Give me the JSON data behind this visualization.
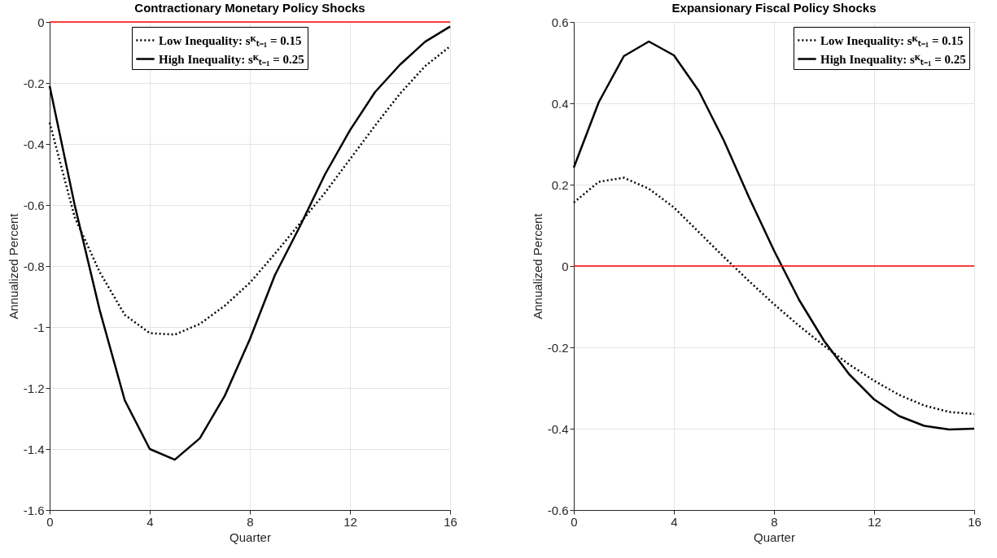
{
  "chart_data": [
    {
      "type": "line",
      "title": "Contractionary Monetary Policy Shocks",
      "xlabel": "Quarter",
      "ylabel": "Annualized Percent",
      "x": [
        0,
        1,
        2,
        3,
        4,
        5,
        6,
        7,
        8,
        9,
        10,
        11,
        12,
        13,
        14,
        15,
        16
      ],
      "series": [
        {
          "name": "Low Inequality: sᴷₜ₋₁ = 0.15",
          "color": "#000000",
          "line_style": "dotted",
          "values": [
            -0.33,
            -0.64,
            -0.82,
            -0.96,
            -1.02,
            -1.025,
            -0.99,
            -0.93,
            -0.855,
            -0.76,
            -0.66,
            -0.56,
            -0.45,
            -0.34,
            -0.235,
            -0.145,
            -0.08
          ]
        },
        {
          "name": "High Inequality: sᴷₜ₋₁ = 0.25",
          "color": "#000000",
          "line_style": "solid",
          "values": [
            -0.21,
            -0.6,
            -0.945,
            -1.24,
            -1.4,
            -1.435,
            -1.365,
            -1.225,
            -1.04,
            -0.83,
            -0.67,
            -0.5,
            -0.355,
            -0.23,
            -0.14,
            -0.065,
            -0.015
          ]
        }
      ],
      "xlim": [
        0,
        16
      ],
      "xticks": [
        0,
        4,
        8,
        12,
        16
      ],
      "ylim": [
        -1.6,
        0
      ],
      "yticks": [
        -1.6,
        -1.4,
        -1.2,
        -1,
        -0.8,
        -0.6,
        -0.4,
        -0.2,
        0
      ],
      "ref_lines": [
        {
          "axis": "y",
          "value": 0,
          "color": "#ff0000"
        }
      ],
      "grid": true,
      "legend": "top"
    },
    {
      "type": "line",
      "title": "Expansionary Fiscal Policy Shocks",
      "xlabel": "Quarter",
      "ylabel": "Annualized Percent",
      "x": [
        0,
        1,
        2,
        3,
        4,
        5,
        6,
        7,
        8,
        9,
        10,
        11,
        12,
        13,
        14,
        15,
        16
      ],
      "series": [
        {
          "name": "Low Inequality: sᴷₜ₋₁ = 0.15",
          "color": "#000000",
          "line_style": "dotted",
          "values": [
            0.156,
            0.207,
            0.217,
            0.19,
            0.144,
            0.083,
            0.022,
            -0.037,
            -0.094,
            -0.147,
            -0.196,
            -0.242,
            -0.282,
            -0.317,
            -0.343,
            -0.359,
            -0.364
          ]
        },
        {
          "name": "High Inequality: sᴷₜ₋₁ = 0.25",
          "color": "#000000",
          "line_style": "solid",
          "values": [
            0.242,
            0.403,
            0.516,
            0.552,
            0.518,
            0.43,
            0.308,
            0.169,
            0.038,
            -0.083,
            -0.184,
            -0.266,
            -0.328,
            -0.369,
            -0.393,
            -0.402,
            -0.4
          ]
        }
      ],
      "xlim": [
        0,
        16
      ],
      "xticks": [
        0,
        4,
        8,
        12,
        16
      ],
      "ylim": [
        -0.6,
        0.6
      ],
      "yticks": [
        -0.6,
        -0.4,
        -0.2,
        0,
        0.2,
        0.4,
        0.6
      ],
      "ref_lines": [
        {
          "axis": "y",
          "value": 0,
          "color": "#ff0000"
        }
      ],
      "grid": true,
      "legend": "top right"
    }
  ]
}
